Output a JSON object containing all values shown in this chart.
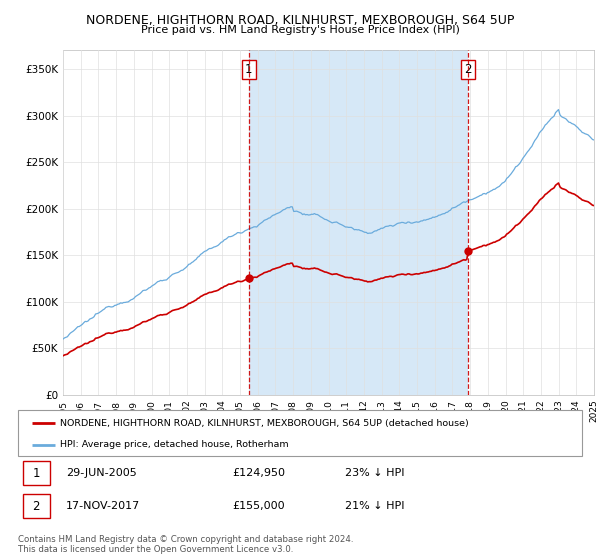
{
  "title": "NORDENE, HIGHTHORN ROAD, KILNHURST, MEXBOROUGH, S64 5UP",
  "subtitle": "Price paid vs. HM Land Registry's House Price Index (HPI)",
  "hpi_color": "#6aabdc",
  "hpi_fill_color": "#d6e8f7",
  "price_color": "#cc0000",
  "vline_color": "#cc0000",
  "ylim": [
    0,
    370000
  ],
  "yticks": [
    0,
    50000,
    100000,
    150000,
    200000,
    250000,
    300000,
    350000
  ],
  "ytick_labels": [
    "£0",
    "£50K",
    "£100K",
    "£150K",
    "£200K",
    "£250K",
    "£300K",
    "£350K"
  ],
  "sale1_year": 2005.5,
  "sale1_price": 124950,
  "sale2_year": 2017.88,
  "sale2_price": 155000,
  "xlim_start": 1995,
  "xlim_end": 2025,
  "legend_line1": "NORDENE, HIGHTHORN ROAD, KILNHURST, MEXBOROUGH, S64 5UP (detached house)",
  "legend_line2": "HPI: Average price, detached house, Rotherham",
  "table_row1": [
    "1",
    "29-JUN-2005",
    "£124,950",
    "23% ↓ HPI"
  ],
  "table_row2": [
    "2",
    "17-NOV-2017",
    "£155,000",
    "21% ↓ HPI"
  ],
  "footnote": "Contains HM Land Registry data © Crown copyright and database right 2024.\nThis data is licensed under the Open Government Licence v3.0.",
  "background_color": "#ffffff",
  "grid_color": "#e0e0e0"
}
